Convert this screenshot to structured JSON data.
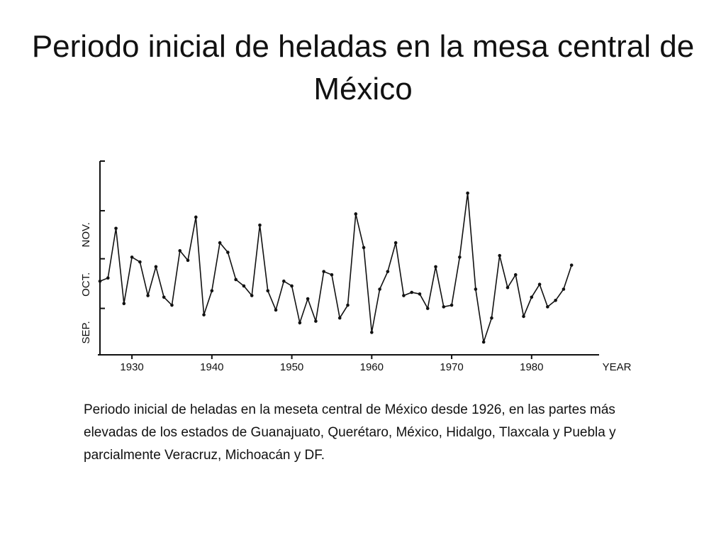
{
  "title": "Periodo inicial de heladas en la mesa central de México",
  "caption": "Periodo inicial de heladas en la meseta central de México desde 1926, en las partes más elevadas de los estados de Guanajuato, Querétaro, México, Hidalgo, Tlaxcala y Puebla y parcialmente Veracruz, Michoacán y DF.",
  "chart_data": {
    "type": "line",
    "xlabel": "YEAR",
    "color": "#111111",
    "x": [
      1926,
      1927,
      1928,
      1929,
      1930,
      1931,
      1932,
      1933,
      1934,
      1935,
      1936,
      1937,
      1938,
      1939,
      1940,
      1941,
      1942,
      1943,
      1944,
      1945,
      1946,
      1947,
      1948,
      1949,
      1950,
      1951,
      1952,
      1953,
      1954,
      1955,
      1956,
      1957,
      1958,
      1959,
      1960,
      1961,
      1962,
      1963,
      1964,
      1965,
      1966,
      1967,
      1968,
      1969,
      1970,
      1971,
      1972,
      1973,
      1974,
      1975,
      1976,
      1977,
      1978,
      1979,
      1980,
      1981,
      1982,
      1983,
      1984,
      1985
    ],
    "values": [
      47,
      49,
      80,
      33,
      62,
      59,
      38,
      56,
      37,
      32,
      66,
      60,
      87,
      26,
      41,
      71,
      65,
      48,
      44,
      38,
      82,
      41,
      29,
      47,
      44,
      21,
      36,
      22,
      53,
      51,
      24,
      32,
      89,
      68,
      15,
      42,
      53,
      71,
      38,
      40,
      39,
      30,
      56,
      31,
      32,
      62,
      102,
      42,
      9,
      24,
      63,
      43,
      51,
      25,
      37,
      45,
      31,
      35,
      42,
      57
    ],
    "xlim": [
      1926,
      1988
    ],
    "xticks": [
      1930,
      1940,
      1950,
      1960,
      1970,
      1980
    ],
    "ylim": [
      1,
      122
    ],
    "yticks": [
      {
        "value": 15,
        "label": "SEP."
      },
      {
        "value": 45,
        "label": "OCT."
      },
      {
        "value": 76,
        "label": "NOV."
      }
    ],
    "ymonth_bounds": [
      30,
      61,
      91,
      122
    ]
  }
}
